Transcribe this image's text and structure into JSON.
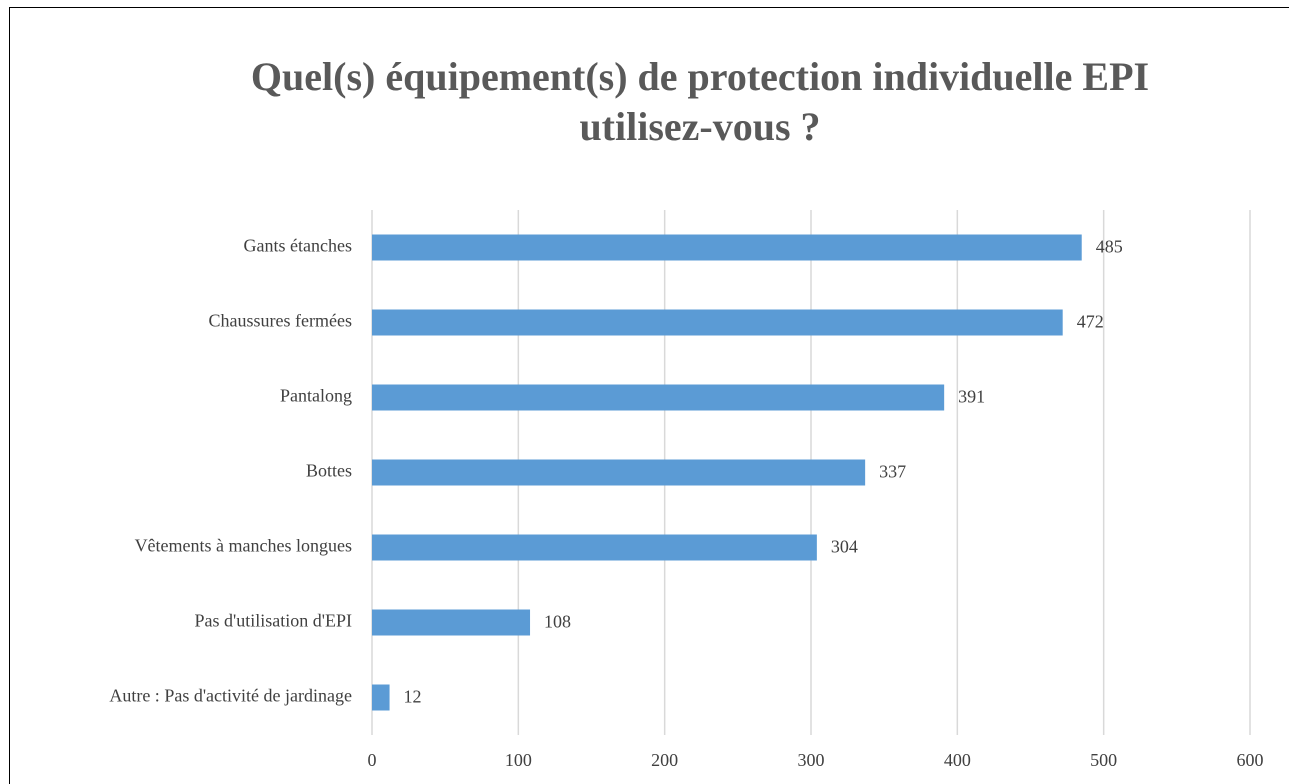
{
  "chart_data": {
    "type": "bar",
    "orientation": "horizontal",
    "title": "Quel(s) équipement(s) de protection individuelle EPI utilisez-vous ?",
    "categories": [
      "Gants étanches",
      "Chaussures fermées",
      "Pantalong",
      "Bottes",
      "Vêtements à manches longues",
      "Pas d'utilisation d'EPI",
      "Autre : Pas d'activité de jardinage"
    ],
    "values": [
      485,
      472,
      391,
      337,
      304,
      108,
      12
    ],
    "color": "#5b9bd5",
    "xlim": [
      0,
      600
    ],
    "xticks": [
      0,
      100,
      200,
      300,
      400,
      500,
      600
    ],
    "grid": true
  }
}
